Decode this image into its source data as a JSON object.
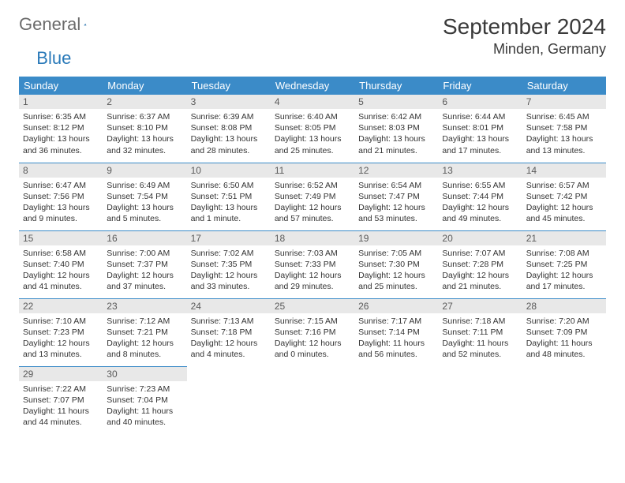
{
  "brand": {
    "general": "General",
    "blue": "Blue"
  },
  "title": "September 2024",
  "location": "Minden, Germany",
  "colors": {
    "header_bg": "#3b8bc8",
    "header_text": "#ffffff",
    "daynum_bg": "#e8e8e8",
    "daynum_text": "#5a5a5a",
    "body_text": "#333333",
    "rule": "#3b8bc8",
    "brand_gray": "#6b6b6b",
    "brand_blue": "#2a7ab9"
  },
  "typography": {
    "title_fontsize": 28,
    "location_fontsize": 18,
    "weekday_fontsize": 13,
    "daynum_fontsize": 12,
    "body_fontsize": 10.5
  },
  "weekdays": [
    "Sunday",
    "Monday",
    "Tuesday",
    "Wednesday",
    "Thursday",
    "Friday",
    "Saturday"
  ],
  "weeks": [
    [
      {
        "n": "1",
        "sr": "Sunrise: 6:35 AM",
        "ss": "Sunset: 8:12 PM",
        "d1": "Daylight: 13 hours",
        "d2": "and 36 minutes."
      },
      {
        "n": "2",
        "sr": "Sunrise: 6:37 AM",
        "ss": "Sunset: 8:10 PM",
        "d1": "Daylight: 13 hours",
        "d2": "and 32 minutes."
      },
      {
        "n": "3",
        "sr": "Sunrise: 6:39 AM",
        "ss": "Sunset: 8:08 PM",
        "d1": "Daylight: 13 hours",
        "d2": "and 28 minutes."
      },
      {
        "n": "4",
        "sr": "Sunrise: 6:40 AM",
        "ss": "Sunset: 8:05 PM",
        "d1": "Daylight: 13 hours",
        "d2": "and 25 minutes."
      },
      {
        "n": "5",
        "sr": "Sunrise: 6:42 AM",
        "ss": "Sunset: 8:03 PM",
        "d1": "Daylight: 13 hours",
        "d2": "and 21 minutes."
      },
      {
        "n": "6",
        "sr": "Sunrise: 6:44 AM",
        "ss": "Sunset: 8:01 PM",
        "d1": "Daylight: 13 hours",
        "d2": "and 17 minutes."
      },
      {
        "n": "7",
        "sr": "Sunrise: 6:45 AM",
        "ss": "Sunset: 7:58 PM",
        "d1": "Daylight: 13 hours",
        "d2": "and 13 minutes."
      }
    ],
    [
      {
        "n": "8",
        "sr": "Sunrise: 6:47 AM",
        "ss": "Sunset: 7:56 PM",
        "d1": "Daylight: 13 hours",
        "d2": "and 9 minutes."
      },
      {
        "n": "9",
        "sr": "Sunrise: 6:49 AM",
        "ss": "Sunset: 7:54 PM",
        "d1": "Daylight: 13 hours",
        "d2": "and 5 minutes."
      },
      {
        "n": "10",
        "sr": "Sunrise: 6:50 AM",
        "ss": "Sunset: 7:51 PM",
        "d1": "Daylight: 13 hours",
        "d2": "and 1 minute."
      },
      {
        "n": "11",
        "sr": "Sunrise: 6:52 AM",
        "ss": "Sunset: 7:49 PM",
        "d1": "Daylight: 12 hours",
        "d2": "and 57 minutes."
      },
      {
        "n": "12",
        "sr": "Sunrise: 6:54 AM",
        "ss": "Sunset: 7:47 PM",
        "d1": "Daylight: 12 hours",
        "d2": "and 53 minutes."
      },
      {
        "n": "13",
        "sr": "Sunrise: 6:55 AM",
        "ss": "Sunset: 7:44 PM",
        "d1": "Daylight: 12 hours",
        "d2": "and 49 minutes."
      },
      {
        "n": "14",
        "sr": "Sunrise: 6:57 AM",
        "ss": "Sunset: 7:42 PM",
        "d1": "Daylight: 12 hours",
        "d2": "and 45 minutes."
      }
    ],
    [
      {
        "n": "15",
        "sr": "Sunrise: 6:58 AM",
        "ss": "Sunset: 7:40 PM",
        "d1": "Daylight: 12 hours",
        "d2": "and 41 minutes."
      },
      {
        "n": "16",
        "sr": "Sunrise: 7:00 AM",
        "ss": "Sunset: 7:37 PM",
        "d1": "Daylight: 12 hours",
        "d2": "and 37 minutes."
      },
      {
        "n": "17",
        "sr": "Sunrise: 7:02 AM",
        "ss": "Sunset: 7:35 PM",
        "d1": "Daylight: 12 hours",
        "d2": "and 33 minutes."
      },
      {
        "n": "18",
        "sr": "Sunrise: 7:03 AM",
        "ss": "Sunset: 7:33 PM",
        "d1": "Daylight: 12 hours",
        "d2": "and 29 minutes."
      },
      {
        "n": "19",
        "sr": "Sunrise: 7:05 AM",
        "ss": "Sunset: 7:30 PM",
        "d1": "Daylight: 12 hours",
        "d2": "and 25 minutes."
      },
      {
        "n": "20",
        "sr": "Sunrise: 7:07 AM",
        "ss": "Sunset: 7:28 PM",
        "d1": "Daylight: 12 hours",
        "d2": "and 21 minutes."
      },
      {
        "n": "21",
        "sr": "Sunrise: 7:08 AM",
        "ss": "Sunset: 7:25 PM",
        "d1": "Daylight: 12 hours",
        "d2": "and 17 minutes."
      }
    ],
    [
      {
        "n": "22",
        "sr": "Sunrise: 7:10 AM",
        "ss": "Sunset: 7:23 PM",
        "d1": "Daylight: 12 hours",
        "d2": "and 13 minutes."
      },
      {
        "n": "23",
        "sr": "Sunrise: 7:12 AM",
        "ss": "Sunset: 7:21 PM",
        "d1": "Daylight: 12 hours",
        "d2": "and 8 minutes."
      },
      {
        "n": "24",
        "sr": "Sunrise: 7:13 AM",
        "ss": "Sunset: 7:18 PM",
        "d1": "Daylight: 12 hours",
        "d2": "and 4 minutes."
      },
      {
        "n": "25",
        "sr": "Sunrise: 7:15 AM",
        "ss": "Sunset: 7:16 PM",
        "d1": "Daylight: 12 hours",
        "d2": "and 0 minutes."
      },
      {
        "n": "26",
        "sr": "Sunrise: 7:17 AM",
        "ss": "Sunset: 7:14 PM",
        "d1": "Daylight: 11 hours",
        "d2": "and 56 minutes."
      },
      {
        "n": "27",
        "sr": "Sunrise: 7:18 AM",
        "ss": "Sunset: 7:11 PM",
        "d1": "Daylight: 11 hours",
        "d2": "and 52 minutes."
      },
      {
        "n": "28",
        "sr": "Sunrise: 7:20 AM",
        "ss": "Sunset: 7:09 PM",
        "d1": "Daylight: 11 hours",
        "d2": "and 48 minutes."
      }
    ],
    [
      {
        "n": "29",
        "sr": "Sunrise: 7:22 AM",
        "ss": "Sunset: 7:07 PM",
        "d1": "Daylight: 11 hours",
        "d2": "and 44 minutes."
      },
      {
        "n": "30",
        "sr": "Sunrise: 7:23 AM",
        "ss": "Sunset: 7:04 PM",
        "d1": "Daylight: 11 hours",
        "d2": "and 40 minutes."
      },
      null,
      null,
      null,
      null,
      null
    ]
  ]
}
